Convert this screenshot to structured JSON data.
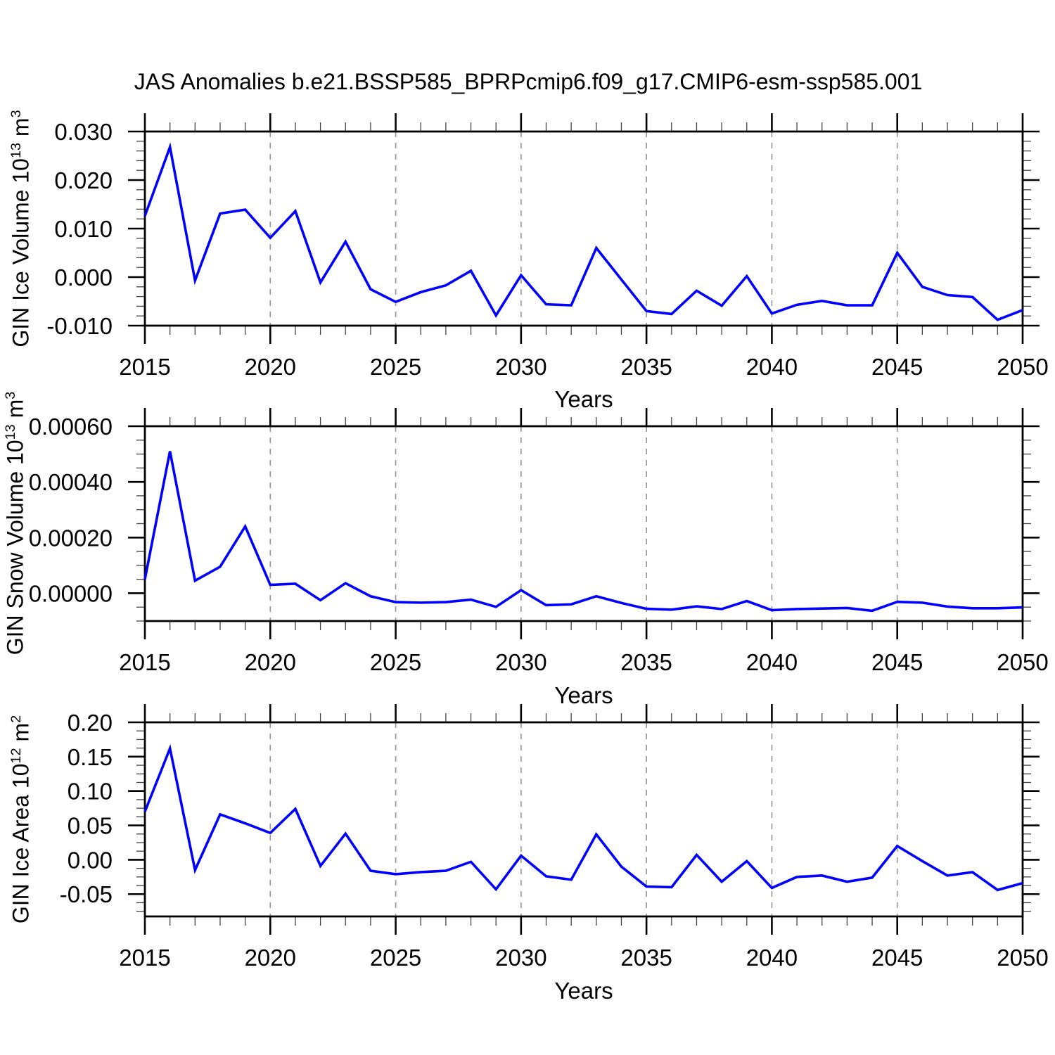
{
  "title": "JAS Anomalies b.e21.BSSP585_BPRPcmip6.f09_g17.CMIP6-esm-ssp585.001",
  "style": {
    "line_color": "#0000ff",
    "grid_color": "#999999",
    "axis_color": "#000000",
    "minor_tick_color": "#444444",
    "background": "#ffffff"
  },
  "x_axis": {
    "label": "Years",
    "range": [
      2015,
      2050
    ],
    "major_ticks": [
      2015,
      2020,
      2025,
      2030,
      2035,
      2040,
      2045,
      2050
    ],
    "minor_step": 1,
    "gridlines": [
      2020,
      2025,
      2030,
      2035,
      2040,
      2045
    ]
  },
  "chart_data": [
    {
      "type": "line",
      "ylabel": {
        "prefix": "GIN Ice Volume 10",
        "exp": "13",
        "unit": " m",
        "unit_exp": "3"
      },
      "ylim": [
        -0.01,
        0.03
      ],
      "y_minor_step": 0.002,
      "yticks": [
        {
          "v": 0.03,
          "label": "0.030"
        },
        {
          "v": 0.02,
          "label": "0.020"
        },
        {
          "v": 0.01,
          "label": "0.010"
        },
        {
          "v": 0.0,
          "label": "0.000"
        },
        {
          "v": -0.01,
          "label": "-0.010"
        }
      ],
      "x_start": 2015,
      "values": [
        0.0126,
        0.0268,
        -0.0007,
        0.0131,
        0.0139,
        0.0081,
        0.0136,
        -0.0011,
        0.0073,
        -0.0025,
        -0.0051,
        -0.0031,
        -0.0017,
        0.0013,
        -0.0079,
        0.0004,
        -0.0056,
        -0.0058,
        0.006,
        -0.0005,
        -0.007,
        -0.0076,
        -0.0028,
        -0.0059,
        0.0002,
        -0.0075,
        -0.0057,
        -0.0049,
        -0.0058,
        -0.0058,
        0.005,
        -0.002,
        -0.0037,
        -0.0041,
        -0.0088,
        -0.0068
      ]
    },
    {
      "type": "line",
      "ylabel": {
        "prefix": "GIN Snow Volume 10",
        "exp": "13",
        "unit": " m",
        "unit_exp": "3"
      },
      "ylim": [
        -0.0001,
        0.0006
      ],
      "y_minor_step": 5e-05,
      "yticks": [
        {
          "v": 0.0006,
          "label": "0.00060"
        },
        {
          "v": 0.0004,
          "label": "0.00040"
        },
        {
          "v": 0.0002,
          "label": "0.00020"
        },
        {
          "v": 0.0,
          "label": "0.00000"
        }
      ],
      "x_start": 2015,
      "values": [
        5e-05,
        0.00051,
        4.5e-05,
        9.5e-05,
        0.00024,
        3e-05,
        3.4e-05,
        -2.5e-05,
        3.6e-05,
        -1.1e-05,
        -3.2e-05,
        -3.4e-05,
        -3.2e-05,
        -2.3e-05,
        -4.9e-05,
        1.1e-05,
        -4.3e-05,
        -4e-05,
        -1.1e-05,
        -3.5e-05,
        -5.6e-05,
        -5.9e-05,
        -4.7e-05,
        -5.7e-05,
        -2.8e-05,
        -6.1e-05,
        -5.7e-05,
        -5.5e-05,
        -5.3e-05,
        -6.3e-05,
        -3.1e-05,
        -3.4e-05,
        -4.8e-05,
        -5.4e-05,
        -5.4e-05,
        -5.1e-05
      ]
    },
    {
      "type": "line",
      "ylabel": {
        "prefix": "GIN Ice Area 10",
        "exp": "12",
        "unit": " m",
        "unit_exp": "2"
      },
      "ylim": [
        -0.0825,
        0.2
      ],
      "y_minor_step": 0.0125,
      "yticks": [
        {
          "v": 0.2,
          "label": "0.20"
        },
        {
          "v": 0.15,
          "label": "0.15"
        },
        {
          "v": 0.1,
          "label": "0.10"
        },
        {
          "v": 0.05,
          "label": "0.05"
        },
        {
          "v": 0.0,
          "label": "0.00"
        },
        {
          "v": -0.05,
          "label": "-0.05"
        }
      ],
      "x_start": 2015,
      "values": [
        0.07,
        0.162,
        -0.015,
        0.066,
        0.053,
        0.039,
        0.074,
        -0.009,
        0.038,
        -0.016,
        -0.021,
        -0.018,
        -0.016,
        -0.003,
        -0.043,
        0.006,
        -0.024,
        -0.029,
        0.037,
        -0.01,
        -0.039,
        -0.04,
        0.007,
        -0.032,
        -0.002,
        -0.041,
        -0.025,
        -0.023,
        -0.032,
        -0.026,
        0.02,
        -0.002,
        -0.023,
        -0.018,
        -0.044,
        -0.034
      ]
    }
  ]
}
